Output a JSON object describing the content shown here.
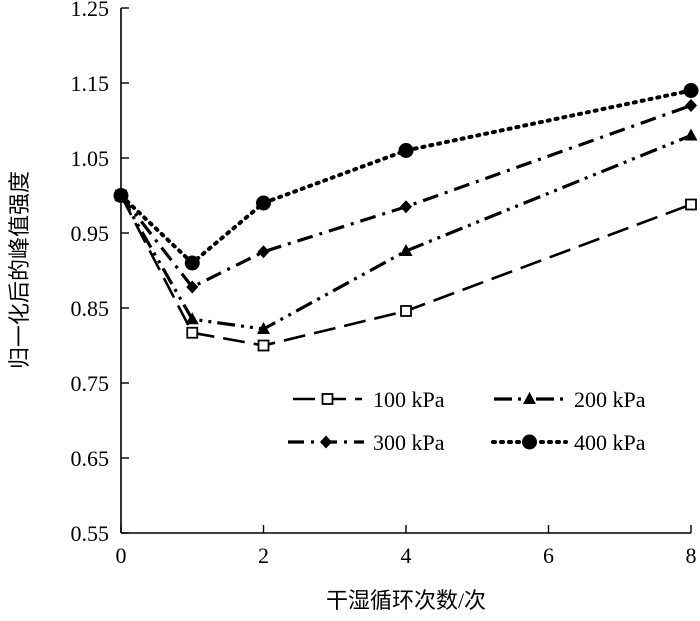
{
  "chart_data": {
    "type": "line",
    "title": "",
    "xlabel": "干湿循环次数/次",
    "ylabel": "归一化后的峰值强度",
    "xlim": [
      0,
      8
    ],
    "ylim": [
      0.55,
      1.25
    ],
    "xticks": [
      0,
      2,
      4,
      6,
      8
    ],
    "xtick_labels": [
      "0",
      "2",
      "4",
      "6",
      "8"
    ],
    "yticks": [
      0.55,
      0.65,
      0.75,
      0.85,
      0.95,
      1.05,
      1.15,
      1.25
    ],
    "ytick_labels": [
      "0.55",
      "0.65",
      "0.75",
      "0.85",
      "0.95",
      "1.05",
      "1.15",
      "1.25"
    ],
    "grid": false,
    "legend_position": "lower-right, two columns",
    "x": [
      0,
      1,
      2,
      4,
      8
    ],
    "series": [
      {
        "name": "100 kPa",
        "values": [
          1.0,
          0.817,
          0.8,
          0.846,
          0.988
        ],
        "marker": "open-square",
        "line": "long-dash",
        "color": "#000000"
      },
      {
        "name": "200 kPa",
        "values": [
          1.0,
          0.835,
          0.822,
          0.926,
          1.08
        ],
        "marker": "triangle",
        "line": "dash-dot-dot",
        "color": "#000000"
      },
      {
        "name": "300 kPa",
        "values": [
          1.0,
          0.878,
          0.925,
          0.985,
          1.12
        ],
        "marker": "diamond",
        "line": "dash-dot",
        "color": "#000000"
      },
      {
        "name": "400 kPa",
        "values": [
          1.0,
          0.91,
          0.99,
          1.06,
          1.14
        ],
        "marker": "circle",
        "line": "dotted",
        "color": "#000000"
      }
    ]
  }
}
